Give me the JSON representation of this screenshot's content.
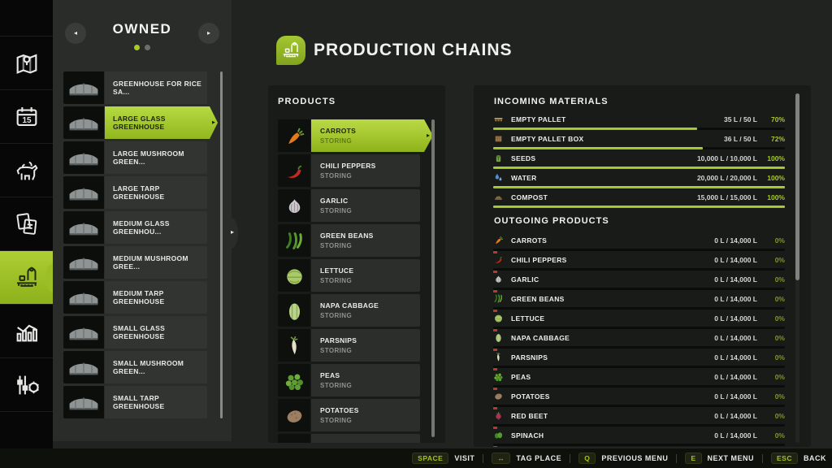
{
  "colors": {
    "accent_green": "#a7cb2d",
    "percent_green": "#a6c827",
    "percent_zero": "#7e9a1c",
    "alert_red": "#c23524",
    "panel_bg": "#191b18",
    "sidebar_bg": "#070707"
  },
  "sidebar": {
    "items": [
      {
        "name": "map",
        "icon": "map-icon",
        "selected": false
      },
      {
        "name": "calendar",
        "icon": "calendar-icon",
        "selected": false
      },
      {
        "name": "animals",
        "icon": "animals-icon",
        "selected": false
      },
      {
        "name": "contracts",
        "icon": "contracts-icon",
        "selected": false
      },
      {
        "name": "production-chains",
        "icon": "production-icon",
        "selected": true
      },
      {
        "name": "statistics",
        "icon": "statistics-icon",
        "selected": false
      },
      {
        "name": "settings",
        "icon": "settings-icon",
        "selected": false
      }
    ]
  },
  "owned_panel": {
    "title": "OWNED",
    "dots": [
      {
        "active": true
      },
      {
        "active": false
      }
    ],
    "prev_arrow": "◂",
    "next_arrow": "▸",
    "bump_arrow": "▸",
    "items": [
      {
        "label": "GREENHOUSE FOR RICE SA...",
        "icon": "greenhouse-icon",
        "selected": false
      },
      {
        "label": "LARGE GLASS GREENHOUSE",
        "icon": "greenhouse-icon",
        "selected": true
      },
      {
        "label": "LARGE MUSHROOM GREEN...",
        "icon": "greenhouse-icon",
        "selected": false
      },
      {
        "label": "LARGE TARP GREENHOUSE",
        "icon": "greenhouse-icon",
        "selected": false
      },
      {
        "label": "MEDIUM GLASS GREENHOU...",
        "icon": "greenhouse-icon",
        "selected": false
      },
      {
        "label": "MEDIUM MUSHROOM GREE...",
        "icon": "greenhouse-icon",
        "selected": false
      },
      {
        "label": "MEDIUM TARP GREENHOUSE",
        "icon": "greenhouse-icon",
        "selected": false
      },
      {
        "label": "SMALL GLASS GREENHOUSE",
        "icon": "greenhouse-icon",
        "selected": false
      },
      {
        "label": "SMALL MUSHROOM GREEN...",
        "icon": "greenhouse-icon",
        "selected": false
      },
      {
        "label": "SMALL TARP GREENHOUSE",
        "icon": "greenhouse-icon",
        "selected": false
      }
    ]
  },
  "header": {
    "title": "PRODUCTION CHAINS"
  },
  "products_panel": {
    "title": "PRODUCTS",
    "items": [
      {
        "name": "CARROTS",
        "status": "STORING",
        "icon": "carrot-icon",
        "selected": true
      },
      {
        "name": "CHILI PEPPERS",
        "status": "STORING",
        "icon": "chili-icon",
        "selected": false
      },
      {
        "name": "GARLIC",
        "status": "STORING",
        "icon": "garlic-icon",
        "selected": false
      },
      {
        "name": "GREEN BEANS",
        "status": "STORING",
        "icon": "greenbeans-icon",
        "selected": false
      },
      {
        "name": "LETTUCE",
        "status": "STORING",
        "icon": "lettuce-icon",
        "selected": false
      },
      {
        "name": "NAPA CABBAGE",
        "status": "STORING",
        "icon": "napa-cabbage-icon",
        "selected": false
      },
      {
        "name": "PARSNIPS",
        "status": "STORING",
        "icon": "parsnip-icon",
        "selected": false
      },
      {
        "name": "PEAS",
        "status": "STORING",
        "icon": "peas-icon",
        "selected": false
      },
      {
        "name": "POTATOES",
        "status": "STORING",
        "icon": "potato-icon",
        "selected": false
      }
    ]
  },
  "details_panel": {
    "incoming_title": "INCOMING MATERIALS",
    "incoming": [
      {
        "label": "EMPTY PALLET",
        "icon": "pallet-icon",
        "value": "35 L / 50 L",
        "percent_label": "70%",
        "percent": 70
      },
      {
        "label": "EMPTY PALLET BOX",
        "icon": "pallet-box-icon",
        "value": "36 L / 50 L",
        "percent_label": "72%",
        "percent": 72
      },
      {
        "label": "SEEDS",
        "icon": "seeds-icon",
        "value": "10,000 L / 10,000 L",
        "percent_label": "100%",
        "percent": 100
      },
      {
        "label": "WATER",
        "icon": "water-icon",
        "value": "20,000 L / 20,000 L",
        "percent_label": "100%",
        "percent": 100
      },
      {
        "label": "COMPOST",
        "icon": "compost-icon",
        "value": "15,000 L / 15,000 L",
        "percent_label": "100%",
        "percent": 100
      }
    ],
    "outgoing_title": "OUTGOING PRODUCTS",
    "outgoing": [
      {
        "label": "CARROTS",
        "icon": "carrot-icon",
        "value": "0 L / 14,000 L",
        "percent_label": "0%",
        "percent": 0
      },
      {
        "label": "CHILI PEPPERS",
        "icon": "chili-icon",
        "value": "0 L / 14,000 L",
        "percent_label": "0%",
        "percent": 0
      },
      {
        "label": "GARLIC",
        "icon": "garlic-icon",
        "value": "0 L / 14,000 L",
        "percent_label": "0%",
        "percent": 0
      },
      {
        "label": "GREEN BEANS",
        "icon": "greenbeans-icon",
        "value": "0 L / 14,000 L",
        "percent_label": "0%",
        "percent": 0
      },
      {
        "label": "LETTUCE",
        "icon": "lettuce-icon",
        "value": "0 L / 14,000 L",
        "percent_label": "0%",
        "percent": 0
      },
      {
        "label": "NAPA CABBAGE",
        "icon": "napa-cabbage-icon",
        "value": "0 L / 14,000 L",
        "percent_label": "0%",
        "percent": 0
      },
      {
        "label": "PARSNIPS",
        "icon": "parsnip-icon",
        "value": "0 L / 14,000 L",
        "percent_label": "0%",
        "percent": 0
      },
      {
        "label": "PEAS",
        "icon": "peas-icon",
        "value": "0 L / 14,000 L",
        "percent_label": "0%",
        "percent": 0
      },
      {
        "label": "POTATOES",
        "icon": "potato-icon",
        "value": "0 L / 14,000 L",
        "percent_label": "0%",
        "percent": 0
      },
      {
        "label": "RED BEET",
        "icon": "red-beet-icon",
        "value": "0 L / 14,000 L",
        "percent_label": "0%",
        "percent": 0
      },
      {
        "label": "SPINACH",
        "icon": "spinach-icon",
        "value": "0 L / 14,000 L",
        "percent_label": "0%",
        "percent": 0
      }
    ]
  },
  "bottom_bar": {
    "controls": [
      {
        "key": "SPACE",
        "label": "VISIT"
      },
      {
        "key": "↔",
        "label": "TAG PLACE"
      },
      {
        "key": "Q",
        "label": "PREVIOUS MENU"
      },
      {
        "key": "E",
        "label": "NEXT MENU"
      },
      {
        "key": "ESC",
        "label": "BACK"
      }
    ]
  }
}
